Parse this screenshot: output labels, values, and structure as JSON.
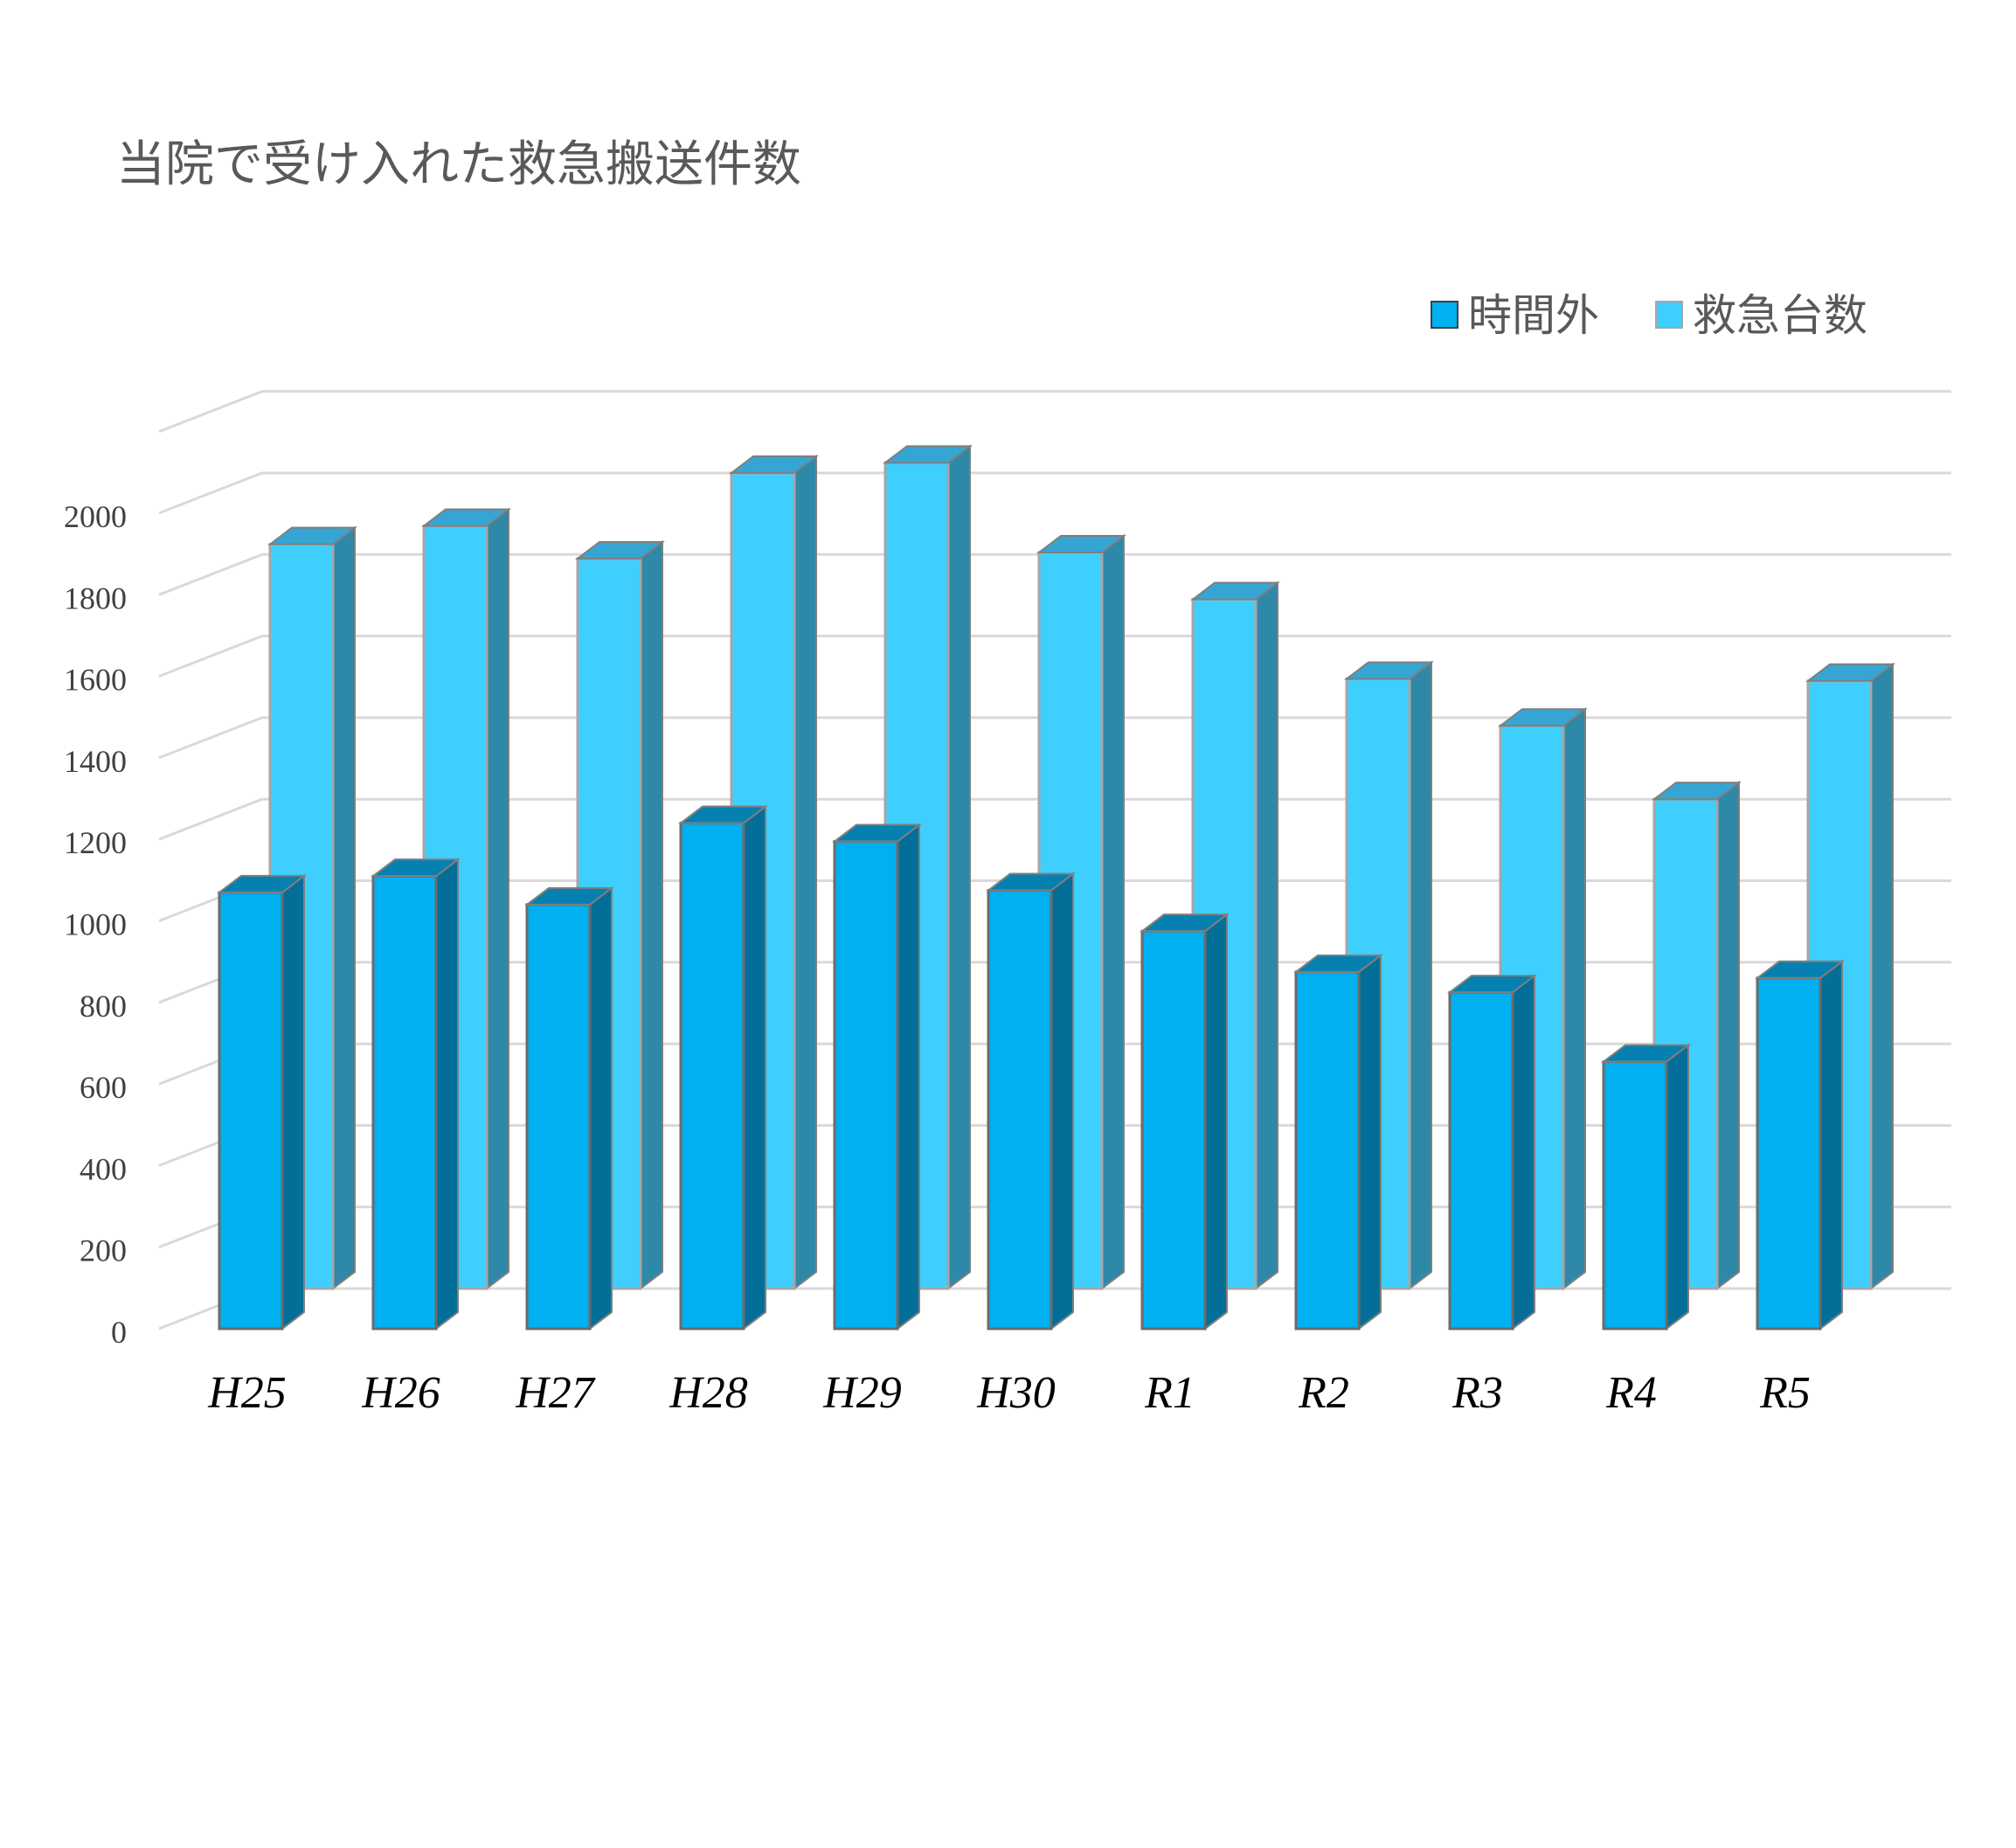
{
  "chart_data": {
    "type": "bar",
    "style": "3d-clustered-column",
    "title": "当院で受け入れた救急搬送件数",
    "xlabel": "",
    "ylabel": "",
    "categories": [
      "H25",
      "H26",
      "H27",
      "H28",
      "H29",
      "H30",
      "R1",
      "R2",
      "R3",
      "R4",
      "R5"
    ],
    "series": [
      {
        "name": "時間外",
        "color": "#00B0F0",
        "values": [
          1070,
          1110,
          1040,
          1240,
          1195,
          1075,
          975,
          875,
          825,
          655,
          860
        ]
      },
      {
        "name": "救急台数",
        "color": "#3FCFFF",
        "values": [
          1825,
          1870,
          1790,
          2000,
          2025,
          1805,
          1690,
          1495,
          1380,
          1200,
          1490
        ]
      }
    ],
    "yticks": [
      0,
      200,
      400,
      600,
      800,
      1000,
      1200,
      1400,
      1600,
      1800,
      2000
    ],
    "ylim": [
      0,
      2000
    ],
    "grid": true,
    "legend": "top-right"
  }
}
